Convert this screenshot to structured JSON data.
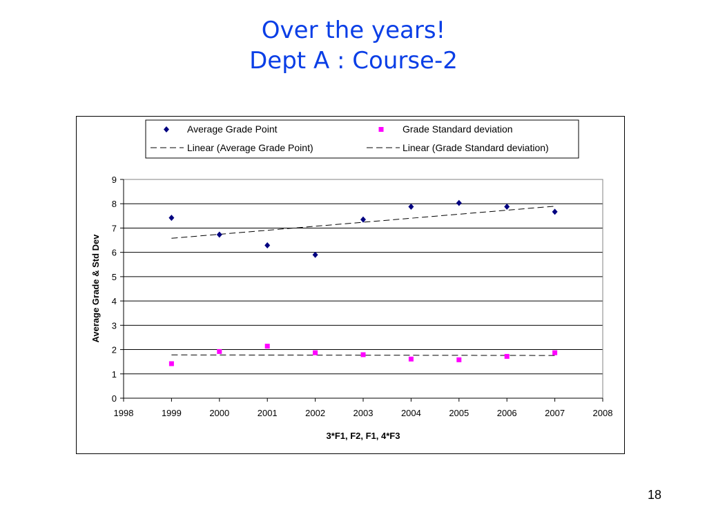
{
  "slide": {
    "title_line1": "Over the years!",
    "title_line2": "Dept A : Course-2",
    "page_number": "18"
  },
  "chart_data": {
    "type": "scatter",
    "title": "",
    "xlabel": "3*F1,  F2,  F1,  4*F3",
    "ylabel": "Average Grade & Std Dev",
    "xlim": [
      1998,
      2008
    ],
    "ylim": [
      0,
      9
    ],
    "xticks": [
      "1998",
      "1999",
      "2000",
      "2001",
      "2002",
      "2003",
      "2004",
      "2005",
      "2006",
      "2007",
      "2008"
    ],
    "yticks": [
      "0",
      "1",
      "2",
      "3",
      "4",
      "5",
      "6",
      "7",
      "8",
      "9"
    ],
    "grid": "horizontal",
    "legend_position": "top",
    "series": [
      {
        "name": "Average Grade Point",
        "color": "#000080",
        "marker": "diamond",
        "x": [
          1999,
          2000,
          2001,
          2002,
          2003,
          2004,
          2005,
          2006,
          2007
        ],
        "y": [
          7.42,
          6.73,
          6.29,
          5.9,
          7.35,
          7.88,
          8.03,
          7.88,
          7.67
        ]
      },
      {
        "name": "Grade Standard deviation",
        "color": "#ff00ff",
        "marker": "square",
        "x": [
          1999,
          2000,
          2001,
          2002,
          2003,
          2004,
          2005,
          2006,
          2007
        ],
        "y": [
          1.42,
          1.92,
          2.14,
          1.87,
          1.79,
          1.61,
          1.58,
          1.72,
          1.87
        ]
      }
    ],
    "trendlines": [
      {
        "name": "Linear (Average Grade Point)",
        "of": "Average Grade Point",
        "style": "dashed"
      },
      {
        "name": "Linear (Grade Standard deviation)",
        "of": "Grade Standard deviation",
        "style": "dashed"
      }
    ]
  }
}
